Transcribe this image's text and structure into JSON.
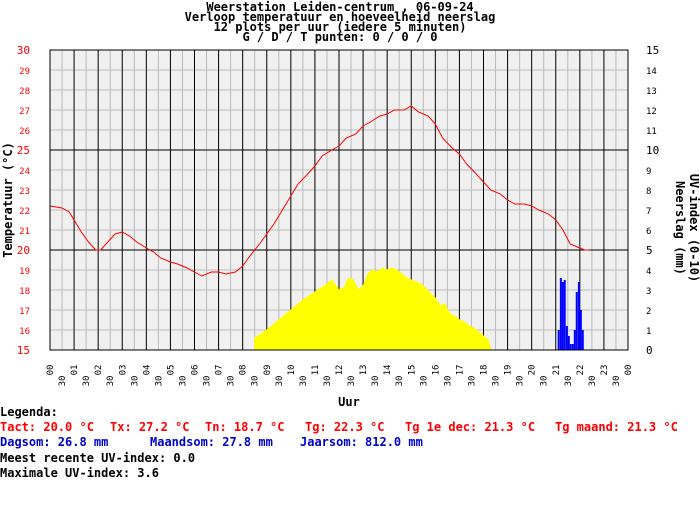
{
  "titles": {
    "line1": "Weerstation Leiden-centrum , 06-09-24",
    "line2": "Verloop temperatuur en hoeveelheid neerslag",
    "line3": "12 plots per uur (iedere 5 minuten)",
    "line4": "G / D / T punten: 0 / 0 / 0"
  },
  "legend": {
    "heading": "Legenda:",
    "tact": "Tact: 20.0 °C",
    "tx": "Tx: 27.2 °C",
    "tn": "Tn: 18.7 °C",
    "tg": "Tg: 22.3 °C",
    "tg_dec": "Tg 1e dec: 21.3 °C",
    "tg_maand": "Tg maand: 21.3 °C",
    "dagsom": "Dagsom: 26.8 mm",
    "maandsom": "Maandsom: 27.8 mm",
    "jaarsom": "Jaarsom: 812.0 mm",
    "uv_recent": "Meest recente UV-index: 0.0",
    "uv_max": "Maximale UV-index: 3.6"
  },
  "colors": {
    "temperature": "#ff0000",
    "precipitation": "#ffff00",
    "uv": "#0000ff",
    "grid_minor": "#bbbbbb",
    "grid_major": "#000000",
    "left_axis_text": "#ff0000",
    "right_axis_text": "#000000",
    "plot_background": "#f0f0f0"
  },
  "chart_data": {
    "type": "line",
    "xlabel": "Uur",
    "ylabel": "Temperatuur (°C)",
    "y2label": "Neerslag (mm)",
    "y3label": "UV-index (0-10)",
    "xlim": [
      0,
      24
    ],
    "ylim": [
      15,
      30
    ],
    "y2lim": [
      0,
      15
    ],
    "yticks": [
      15,
      16,
      17,
      18,
      19,
      20,
      21,
      22,
      23,
      24,
      25,
      26,
      27,
      28,
      29,
      30
    ],
    "y2ticks": [
      0,
      1,
      2,
      3,
      4,
      5,
      6,
      7,
      8,
      9,
      10,
      11,
      12,
      13,
      14,
      15
    ],
    "xticks": [
      "00",
      "30",
      "01",
      "30",
      "02",
      "30",
      "03",
      "30",
      "04",
      "30",
      "05",
      "30",
      "06",
      "30",
      "07",
      "30",
      "08",
      "30",
      "09",
      "30",
      "10",
      "30",
      "11",
      "30",
      "12",
      "30",
      "13",
      "30",
      "14",
      "30",
      "15",
      "30",
      "16",
      "30",
      "17",
      "30",
      "18",
      "30",
      "19",
      "30",
      "20",
      "30",
      "21",
      "30",
      "22",
      "30",
      "23",
      "30",
      "00"
    ],
    "series": [
      {
        "name": "Temperatuur",
        "axis": "left",
        "x": [
          0,
          0.5,
          0.8,
          1.0,
          1.3,
          1.6,
          1.9,
          2.1,
          2.4,
          2.7,
          3.0,
          3.3,
          3.6,
          4.0,
          4.3,
          4.6,
          5.0,
          5.3,
          5.7,
          6.0,
          6.3,
          6.7,
          7.0,
          7.3,
          7.7,
          8.0,
          8.3,
          8.7,
          9.0,
          9.3,
          9.7,
          10.0,
          10.3,
          10.7,
          11.0,
          11.3,
          11.7,
          12.0,
          12.3,
          12.7,
          13.0,
          13.3,
          13.7,
          14.0,
          14.3,
          14.7,
          15.0,
          15.3,
          15.7,
          16.0,
          16.3,
          16.7,
          17.0,
          17.3,
          17.7,
          18.0,
          18.3,
          18.7,
          19.0,
          19.3,
          19.7,
          20.0,
          20.3,
          20.7,
          21.0,
          21.3,
          21.6,
          21.8,
          22.0,
          22.2,
          22.4
        ],
        "y": [
          22.2,
          22.1,
          21.9,
          21.5,
          20.9,
          20.4,
          20.0,
          20.0,
          20.4,
          20.8,
          20.9,
          20.7,
          20.4,
          20.1,
          19.9,
          19.6,
          19.4,
          19.3,
          19.1,
          18.9,
          18.7,
          18.9,
          18.9,
          18.8,
          18.9,
          19.2,
          19.7,
          20.3,
          20.8,
          21.3,
          22.1,
          22.7,
          23.3,
          23.8,
          24.2,
          24.7,
          25.0,
          25.2,
          25.6,
          25.8,
          26.2,
          26.4,
          26.7,
          26.8,
          27.0,
          27.0,
          27.2,
          26.9,
          26.7,
          26.3,
          25.6,
          25.1,
          24.8,
          24.3,
          23.8,
          23.4,
          23.0,
          22.8,
          22.5,
          22.3,
          22.3,
          22.2,
          22.0,
          21.8,
          21.5,
          21.0,
          20.3,
          20.2,
          20.1,
          20.0,
          20.0
        ]
      },
      {
        "name": "Neerslag",
        "axis": "right",
        "type": "area",
        "x": [
          8.5,
          9.0,
          9.5,
          10.0,
          10.5,
          11.0,
          11.5,
          11.7,
          12.0,
          12.2,
          12.4,
          12.6,
          12.8,
          13.0,
          13.2,
          13.4,
          13.6,
          13.8,
          14.0,
          14.2,
          14.4,
          14.6,
          14.8,
          15.0,
          15.2,
          15.4,
          15.6,
          15.8,
          16.0,
          16.2,
          16.4,
          16.6,
          16.8,
          17.0,
          17.2,
          17.4,
          17.6,
          17.8,
          18.0,
          18.2,
          18.3
        ],
        "y": [
          0.6,
          1.0,
          1.5,
          2.0,
          2.5,
          2.9,
          3.3,
          3.5,
          3.0,
          3.1,
          3.6,
          3.5,
          3.0,
          3.2,
          3.8,
          4.0,
          3.9,
          4.1,
          4.0,
          4.1,
          4.0,
          3.8,
          3.6,
          3.5,
          3.4,
          3.3,
          3.1,
          2.8,
          2.6,
          2.2,
          2.3,
          1.8,
          1.7,
          1.5,
          1.4,
          1.2,
          1.1,
          0.9,
          0.7,
          0.5,
          0
        ]
      },
      {
        "name": "UV-index",
        "axis": "right",
        "type": "bar",
        "x": [
          21.0,
          21.08,
          21.17,
          21.25,
          21.33,
          21.42,
          21.5,
          21.58,
          21.67,
          21.75,
          21.83,
          21.92,
          22.0,
          22.08,
          22.17
        ],
        "y": [
          0,
          1.0,
          3.6,
          3.4,
          3.5,
          1.2,
          0.7,
          0.3,
          0.3,
          1.0,
          2.9,
          3.4,
          2.0,
          1.0,
          0
        ]
      }
    ],
    "grid": true
  }
}
